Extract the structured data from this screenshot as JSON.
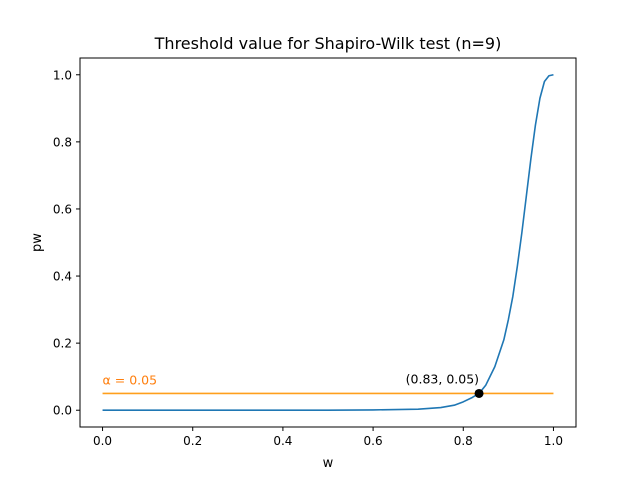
{
  "chart_data": {
    "type": "line",
    "title": "Threshold value for Shapiro-Wilk test (n=9)",
    "xlabel": "w",
    "ylabel": "pw",
    "xlim": [
      -0.05,
      1.05
    ],
    "ylim": [
      -0.05,
      1.05
    ],
    "x_ticks": [
      0.0,
      0.2,
      0.4,
      0.6,
      0.8,
      1.0
    ],
    "y_ticks": [
      0.0,
      0.2,
      0.4,
      0.6,
      0.8,
      1.0
    ],
    "x_tick_labels": [
      "0.0",
      "0.2",
      "0.4",
      "0.6",
      "0.8",
      "1.0"
    ],
    "y_tick_labels": [
      "0.0",
      "0.2",
      "0.4",
      "0.6",
      "0.8",
      "1.0"
    ],
    "grid": false,
    "series": [
      {
        "color": "#1f77b4",
        "x": [
          0.0,
          0.1,
          0.2,
          0.3,
          0.4,
          0.5,
          0.6,
          0.7,
          0.75,
          0.78,
          0.8,
          0.82,
          0.835,
          0.85,
          0.87,
          0.89,
          0.9,
          0.91,
          0.92,
          0.93,
          0.94,
          0.95,
          0.96,
          0.97,
          0.98,
          0.99,
          1.0
        ],
        "y": [
          0.0,
          0.0,
          0.0,
          0.0,
          0.0,
          0.0,
          0.001,
          0.003,
          0.008,
          0.015,
          0.025,
          0.038,
          0.05,
          0.075,
          0.13,
          0.21,
          0.27,
          0.34,
          0.43,
          0.53,
          0.64,
          0.75,
          0.85,
          0.93,
          0.98,
          0.997,
          1.0
        ]
      },
      {
        "color": "#ff9f1c",
        "x": [
          0.0,
          1.0
        ],
        "y": [
          0.05,
          0.05
        ]
      }
    ],
    "points": [
      {
        "x": 0.835,
        "y": 0.05,
        "color": "#000000"
      }
    ],
    "annotations": [
      {
        "text": "α = 0.05",
        "x": 0.0,
        "y": 0.05,
        "color": "#ff7f0e"
      },
      {
        "text": "(0.83, 0.05)",
        "x": 0.835,
        "y": 0.05,
        "color": "#000000"
      }
    ]
  }
}
